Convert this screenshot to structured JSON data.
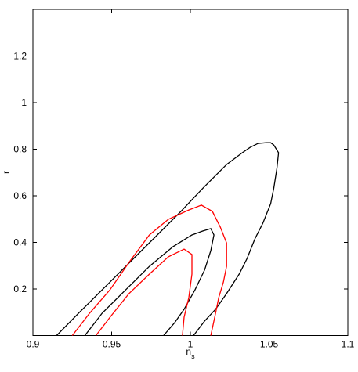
{
  "chart_data": {
    "type": "line",
    "xlabel": {
      "main": "n",
      "sub": "s"
    },
    "ylabel": "r",
    "xlim": [
      0.9,
      1.1
    ],
    "ylim": [
      0,
      1.4
    ],
    "xticks": [
      0.9,
      0.95,
      1,
      1.05,
      1.1
    ],
    "yticks": [
      0.2,
      0.4,
      0.6,
      0.8,
      1,
      1.2
    ],
    "series": [
      {
        "color": "#000000",
        "x": [
          0.915,
          0.929,
          0.949,
          0.964,
          0.979,
          0.994,
          1.008,
          1.023,
          1.033,
          1.038,
          1.043,
          1.048,
          1.051,
          1.053,
          1.056,
          1.055,
          1.053,
          1.051,
          1.046,
          1.041,
          1.036,
          1.031,
          1.023,
          1.016,
          1.009,
          1.002
        ],
        "y": [
          0,
          0.096,
          0.23,
          0.331,
          0.432,
          0.533,
          0.633,
          0.734,
          0.785,
          0.808,
          0.825,
          0.828,
          0.828,
          0.818,
          0.785,
          0.718,
          0.633,
          0.566,
          0.482,
          0.415,
          0.331,
          0.264,
          0.18,
          0.113,
          0.062,
          0
        ]
      },
      {
        "color": "#000000",
        "x": [
          0.933,
          0.944,
          0.959,
          0.974,
          0.989,
          1.001,
          1.008,
          1.013,
          1.015,
          1.013,
          1.009,
          1.003,
          0.996,
          0.99,
          0.983
        ],
        "y": [
          0,
          0.096,
          0.197,
          0.297,
          0.382,
          0.432,
          0.449,
          0.459,
          0.432,
          0.365,
          0.281,
          0.197,
          0.113,
          0.055,
          0
        ]
      },
      {
        "color": "#ff0000",
        "x": [
          0.925,
          0.936,
          0.949,
          0.961,
          0.974,
          0.986,
          0.999,
          1.007,
          1.014,
          1.019,
          1.023,
          1.023,
          1.021,
          1.018,
          1.016,
          1.013
        ],
        "y": [
          0,
          0.096,
          0.197,
          0.314,
          0.432,
          0.499,
          0.539,
          0.56,
          0.533,
          0.466,
          0.398,
          0.297,
          0.23,
          0.163,
          0.096,
          0
        ]
      },
      {
        "color": "#ff0000",
        "x": [
          0.94,
          0.949,
          0.961,
          0.974,
          0.986,
          0.996,
          1.001,
          1.001,
          0.999,
          0.996,
          0.995
        ],
        "y": [
          0,
          0.079,
          0.18,
          0.264,
          0.338,
          0.371,
          0.348,
          0.264,
          0.163,
          0.079,
          0
        ]
      }
    ]
  }
}
